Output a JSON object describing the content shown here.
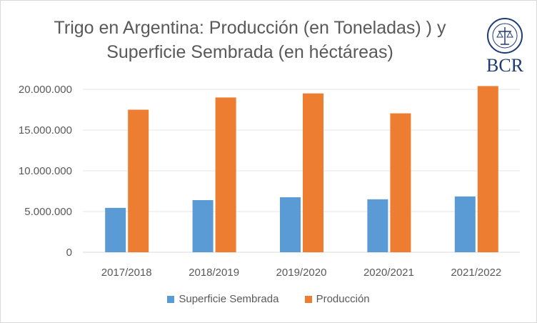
{
  "chart_data": {
    "type": "bar",
    "title": "Trigo en Argentina: Producción (en Toneladas) ) y\nSuperficie Sembrada (en héctáreas)",
    "categories": [
      "2017/2018",
      "2018/2019",
      "2019/2020",
      "2020/2021",
      "2021/2022"
    ],
    "series": [
      {
        "name": "Superficie Sembrada",
        "color": "#5b9bd5",
        "values": [
          5450000,
          6400000,
          6750000,
          6500000,
          6850000
        ]
      },
      {
        "name": "Producción",
        "color": "#ed7d31",
        "values": [
          17500000,
          19000000,
          19500000,
          17050000,
          20400000
        ]
      }
    ],
    "yticks": [
      "0",
      "5.000.000",
      "10.000.000",
      "15.000.000",
      "20.000.000"
    ],
    "ylim": [
      0,
      20000000
    ],
    "grid": true,
    "legend": "bottom"
  },
  "logo": {
    "text": "BCR",
    "icon": "seal-icon",
    "color": "#1f3b73"
  }
}
